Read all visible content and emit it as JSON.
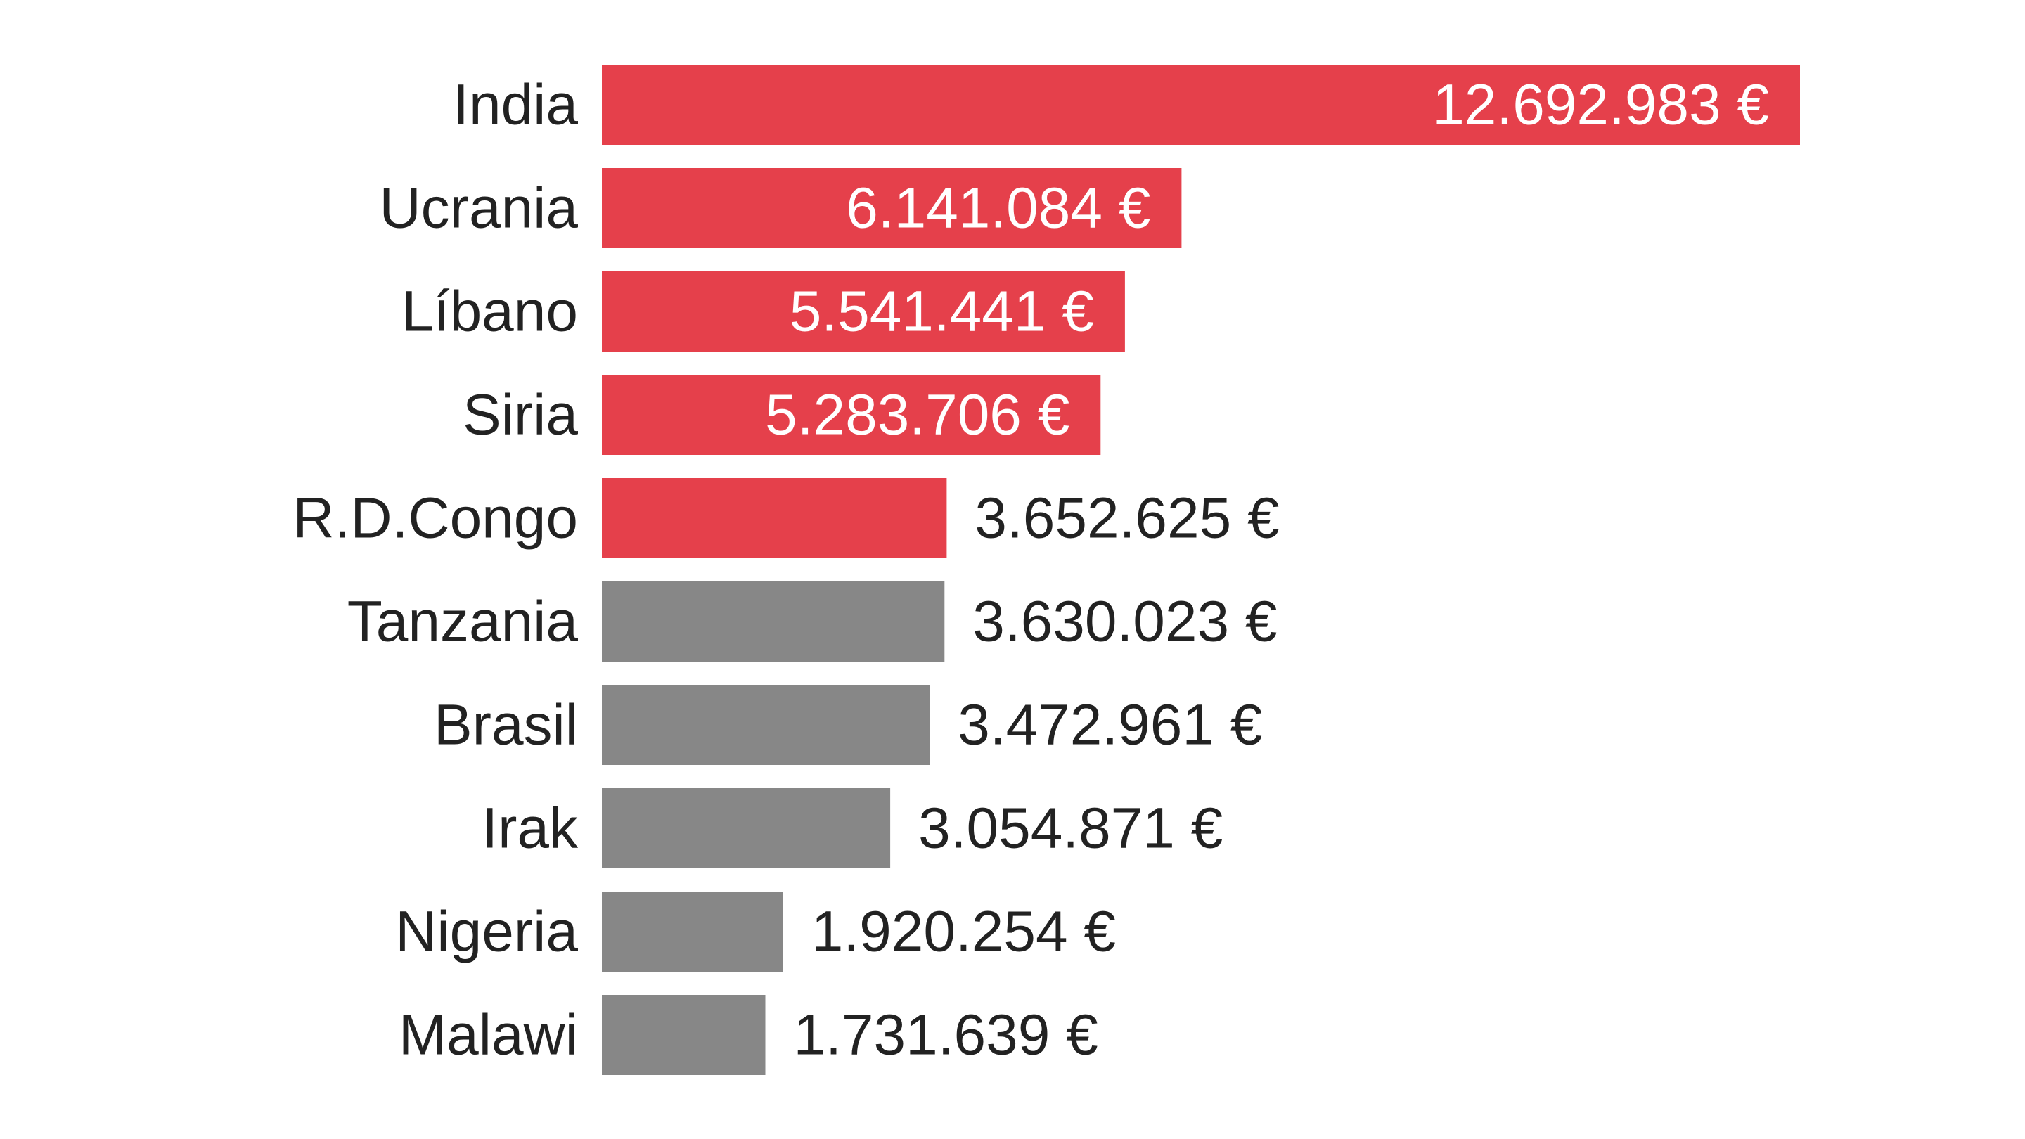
{
  "chart_data": {
    "type": "bar",
    "orientation": "horizontal",
    "categories": [
      "India",
      "Ucrania",
      "Líbano",
      "Siria",
      "R.D.Congo",
      "Tanzania",
      "Brasil",
      "Irak",
      "Nigeria",
      "Malawi"
    ],
    "values": [
      12692983,
      6141084,
      5541441,
      5283706,
      3652625,
      3630023,
      3472961,
      3054871,
      1920254,
      1731639
    ],
    "value_labels": [
      "12.692.983 €",
      "6.141.084 €",
      "5.541.441 €",
      "5.283.706 €",
      "3.652.625 €",
      "3.630.023 €",
      "3.472.961 €",
      "3.054.871 €",
      "1.920.254 €",
      "1.731.639 €"
    ],
    "highlighted": [
      true,
      true,
      true,
      true,
      true,
      false,
      false,
      false,
      false,
      false
    ],
    "colors": {
      "highlight": "#e5404b",
      "default": "#878787",
      "label_inside": "#ffffff",
      "label_outside": "#222222",
      "category_text": "#222222"
    },
    "title": "",
    "xlabel": "",
    "ylabel": "",
    "grid": false,
    "legend": "none"
  }
}
